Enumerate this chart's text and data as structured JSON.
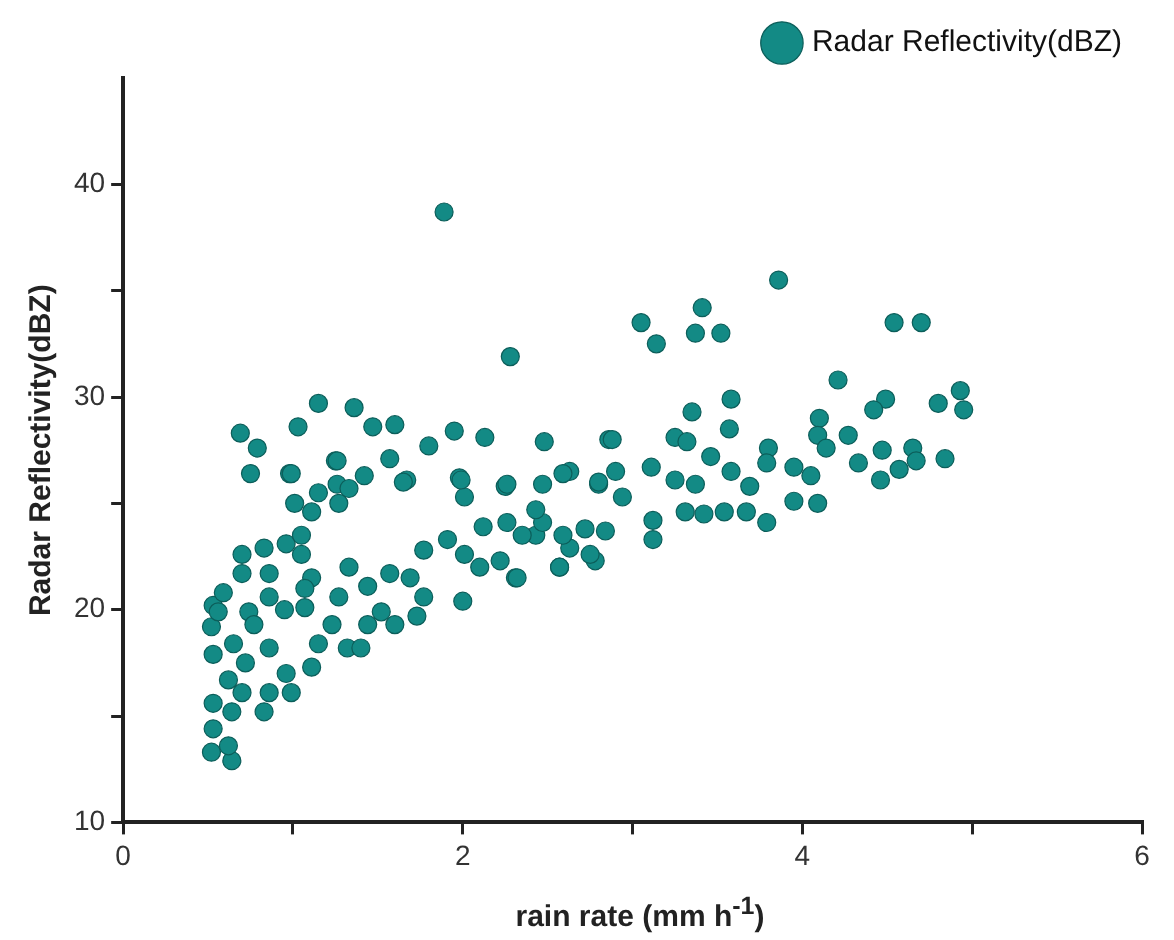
{
  "chart_data": {
    "type": "scatter",
    "xlabel": "rain rate (mm h$^{-1}$)",
    "ylabel": "Radar Reflectivity(dBZ)",
    "legend": "top right",
    "marker": "circle",
    "xlim": [
      0,
      6
    ],
    "xticks": [
      0,
      {
        "value": 1,
        "label": null
      },
      2,
      {
        "value": 3,
        "label": null
      },
      4,
      {
        "value": 5,
        "label": null
      },
      6
    ],
    "ylim": [
      10,
      45
    ],
    "yticks": [
      10,
      {
        "value": 15,
        "label": null
      },
      20,
      {
        "value": 25,
        "label": null
      },
      30,
      {
        "value": 35,
        "label": null
      },
      40
    ],
    "series": [
      {
        "name": "Radar Reflectivity(dBZ)",
        "color": "#138a85",
        "x": [
          1.89,
          2.28,
          0.69,
          0.79,
          0.75,
          1.03,
          0.98,
          1.15,
          1.36,
          1.25,
          1.47,
          1.6,
          1.57,
          1.67,
          1.8,
          1.95,
          2.13,
          2.25,
          2.48,
          1.98,
          2.01,
          3.86,
          3.41,
          3.05,
          3.37,
          3.52,
          3.14,
          4.54,
          4.7,
          4.21,
          3.58,
          3.35,
          3.57,
          4.49,
          4.42,
          4.8,
          4.93,
          4.95,
          4.84,
          4.1,
          4.27,
          4.09,
          4.14,
          3.8,
          3.79,
          3.95,
          4.05,
          4.33,
          4.47,
          4.65,
          4.67,
          4.57,
          4.46,
          4.09,
          3.95,
          3.79,
          3.67,
          3.54,
          3.69,
          3.46,
          3.25,
          3.32,
          2.86,
          3.11,
          3.25,
          3.37,
          3.58,
          2.9,
          2.63,
          2.8,
          2.26,
          2.94,
          3.12,
          3.31,
          3.42,
          3.12,
          2.78,
          2.57,
          2.31,
          2.84,
          2.63,
          2.43,
          2.26,
          2.47,
          0.52,
          0.64,
          0.62,
          0.53,
          0.53,
          0.64,
          0.7,
          0.83,
          0.86,
          0.62,
          0.53,
          0.72,
          0.65,
          0.86,
          0.99,
          0.96,
          1.11,
          1.15,
          1.23,
          1.32,
          1.4,
          1.44,
          1.52,
          1.6,
          1.73,
          1.77,
          2.0,
          0.52,
          0.53,
          0.59,
          0.56,
          0.74,
          0.77,
          0.95,
          0.86,
          1.07,
          1.11,
          1.07,
          1.27,
          1.33,
          1.44,
          1.57,
          1.69,
          1.77,
          1.91,
          2.01,
          2.12,
          2.1,
          2.22,
          2.32,
          2.35,
          2.43,
          2.47,
          2.59,
          2.57,
          2.75,
          2.72,
          2.59,
          0.7,
          0.83,
          0.96,
          0.7,
          0.86,
          1.05,
          1.05,
          1.01,
          1.11,
          1.15,
          1.26,
          1.33,
          1.42,
          1.27,
          1.26,
          0.99,
          1.65,
          1.99,
          2.88,
          2.8
        ],
        "values": [
          38.7,
          31.9,
          28.3,
          27.6,
          26.4,
          28.6,
          26.4,
          29.7,
          29.5,
          27.0,
          28.6,
          28.7,
          27.1,
          26.1,
          27.7,
          28.4,
          28.1,
          25.8,
          27.9,
          26.2,
          25.3,
          35.5,
          34.2,
          33.5,
          33.0,
          33.0,
          32.5,
          33.5,
          33.5,
          30.8,
          29.9,
          29.3,
          28.5,
          29.9,
          29.4,
          29.7,
          30.3,
          29.4,
          27.1,
          29.0,
          28.2,
          28.2,
          27.6,
          27.6,
          26.9,
          26.7,
          26.3,
          26.9,
          27.5,
          27.6,
          27.0,
          26.6,
          26.1,
          25.0,
          25.1,
          24.1,
          24.6,
          24.6,
          25.8,
          27.2,
          28.1,
          27.9,
          28.0,
          26.7,
          26.1,
          25.9,
          26.5,
          26.5,
          26.5,
          25.9,
          25.9,
          25.3,
          24.2,
          24.6,
          24.5,
          23.3,
          22.3,
          22.0,
          21.5,
          23.7,
          22.9,
          23.5,
          24.1,
          24.1,
          13.3,
          12.9,
          13.6,
          14.4,
          15.6,
          15.2,
          16.1,
          15.2,
          16.1,
          16.7,
          17.9,
          17.5,
          18.4,
          18.2,
          16.1,
          17.0,
          17.3,
          18.4,
          19.3,
          18.2,
          18.2,
          19.3,
          19.9,
          19.3,
          19.7,
          20.6,
          20.4,
          19.2,
          20.2,
          20.8,
          19.9,
          19.9,
          19.3,
          20.0,
          20.6,
          20.1,
          21.5,
          21.0,
          20.6,
          22.0,
          21.1,
          21.7,
          21.5,
          22.8,
          23.3,
          22.6,
          23.9,
          22.0,
          22.3,
          21.5,
          23.5,
          24.7,
          25.9,
          26.4,
          22.0,
          22.6,
          23.8,
          23.5,
          22.6,
          22.9,
          23.1,
          21.7,
          21.7,
          22.6,
          23.5,
          25.0,
          24.6,
          25.5,
          25.9,
          25.7,
          26.3,
          25.0,
          27.0,
          26.4,
          26.0,
          26.1,
          28.0,
          26.0
        ]
      }
    ]
  }
}
